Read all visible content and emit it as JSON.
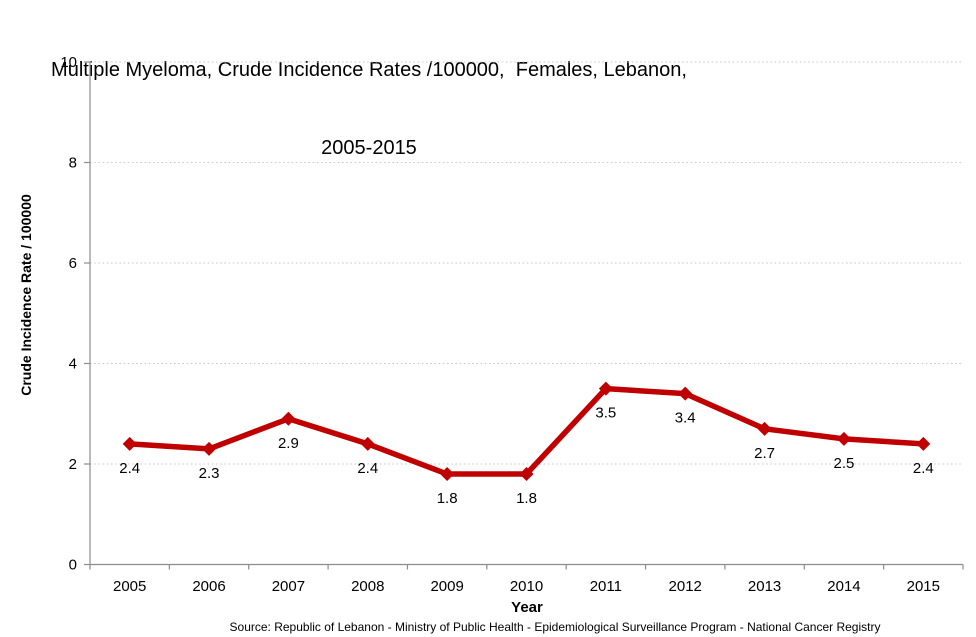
{
  "title": {
    "line1": "Multiple Myeloma, Crude Incidence Rates /100000,  Females, Lebanon,",
    "line2": "2005-2015"
  },
  "source": "Source: Republic of Lebanon - Ministry of Public Health - Epidemiological Surveillance Program - National Cancer Registry",
  "chart_data": {
    "type": "line",
    "title": "Multiple Myeloma, Crude Incidence Rates /100000, Females, Lebanon, 2005-2015",
    "categories": [
      "2005",
      "2006",
      "2007",
      "2008",
      "2009",
      "2010",
      "2011",
      "2012",
      "2013",
      "2014",
      "2015"
    ],
    "series": [
      {
        "name": "Crude Incidence Rate",
        "values": [
          2.4,
          2.3,
          2.9,
          2.4,
          1.8,
          1.8,
          3.5,
          3.4,
          2.7,
          2.5,
          2.4
        ]
      }
    ],
    "data_labels": [
      "2.4",
      "2.3",
      "2.9",
      "2.4",
      "1.8",
      "1.8",
      "3.5",
      "3.4",
      "2.7",
      "2.5",
      "2.4"
    ],
    "xlabel": "Year",
    "ylabel": "Crude Incidence Rate / 100000",
    "ylim": [
      0,
      10
    ],
    "yticks": [
      0,
      2,
      4,
      6,
      8,
      10
    ],
    "grid": true,
    "legend": false,
    "line_color": "#C00000",
    "axis_color": "#8C8C8C",
    "gridline_color": "#C9C9C9",
    "marker": "diamond"
  }
}
